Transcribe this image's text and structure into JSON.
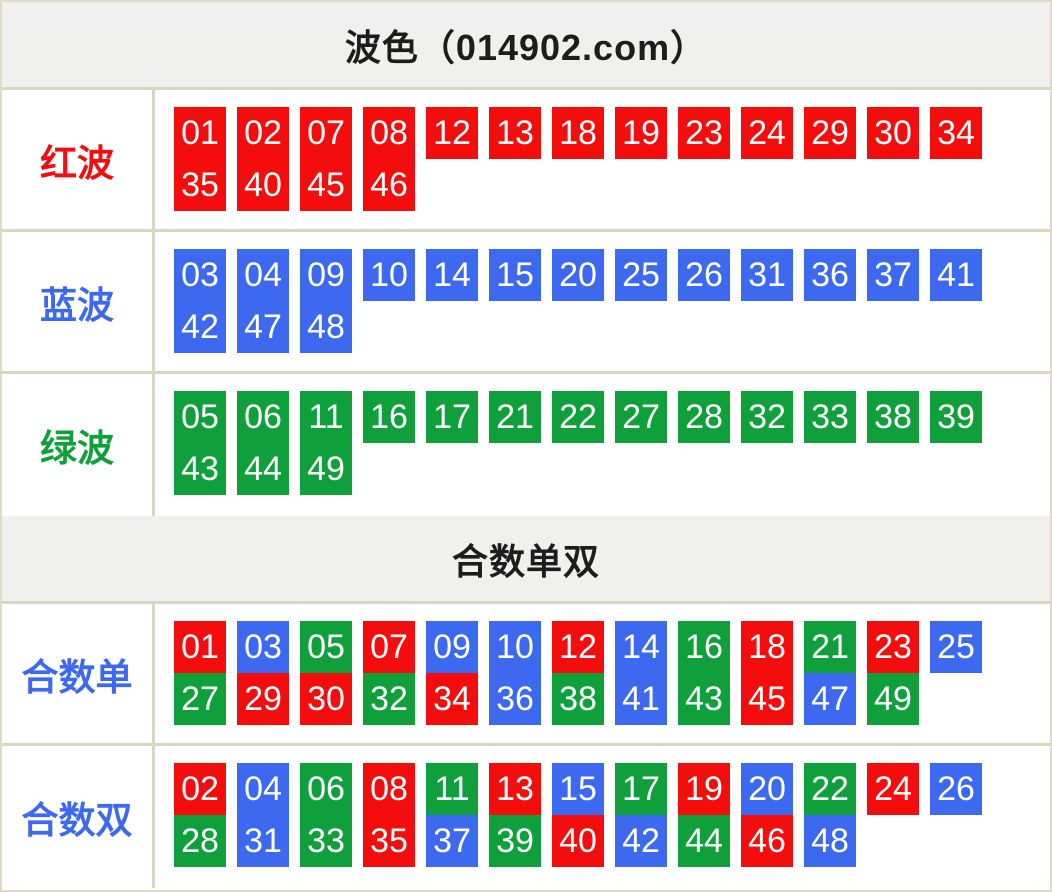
{
  "title": "波色（014902.com）",
  "section_title": "合数单双",
  "colors": {
    "red": "#f30d0d",
    "blue": "#3c69ef",
    "green": "#0fa03c"
  },
  "wave_rows": [
    {
      "id": "red-wave",
      "label": "红波",
      "label_color": "red",
      "line1": [
        {
          "n": "01",
          "c": "red"
        },
        {
          "n": "02",
          "c": "red"
        },
        {
          "n": "07",
          "c": "red"
        },
        {
          "n": "08",
          "c": "red"
        },
        {
          "n": "12",
          "c": "red"
        },
        {
          "n": "13",
          "c": "red"
        },
        {
          "n": "18",
          "c": "red"
        },
        {
          "n": "19",
          "c": "red"
        },
        {
          "n": "23",
          "c": "red"
        },
        {
          "n": "24",
          "c": "red"
        },
        {
          "n": "29",
          "c": "red"
        },
        {
          "n": "30",
          "c": "red"
        },
        {
          "n": "34",
          "c": "red"
        }
      ],
      "line2": [
        {
          "n": "35",
          "c": "red"
        },
        {
          "n": "40",
          "c": "red"
        },
        {
          "n": "45",
          "c": "red"
        },
        {
          "n": "46",
          "c": "red"
        }
      ]
    },
    {
      "id": "blue-wave",
      "label": "蓝波",
      "label_color": "blue",
      "line1": [
        {
          "n": "03",
          "c": "blue"
        },
        {
          "n": "04",
          "c": "blue"
        },
        {
          "n": "09",
          "c": "blue"
        },
        {
          "n": "10",
          "c": "blue"
        },
        {
          "n": "14",
          "c": "blue"
        },
        {
          "n": "15",
          "c": "blue"
        },
        {
          "n": "20",
          "c": "blue"
        },
        {
          "n": "25",
          "c": "blue"
        },
        {
          "n": "26",
          "c": "blue"
        },
        {
          "n": "31",
          "c": "blue"
        },
        {
          "n": "36",
          "c": "blue"
        },
        {
          "n": "37",
          "c": "blue"
        },
        {
          "n": "41",
          "c": "blue"
        }
      ],
      "line2": [
        {
          "n": "42",
          "c": "blue"
        },
        {
          "n": "47",
          "c": "blue"
        },
        {
          "n": "48",
          "c": "blue"
        }
      ]
    },
    {
      "id": "green-wave",
      "label": "绿波",
      "label_color": "green",
      "line1": [
        {
          "n": "05",
          "c": "green"
        },
        {
          "n": "06",
          "c": "green"
        },
        {
          "n": "11",
          "c": "green"
        },
        {
          "n": "16",
          "c": "green"
        },
        {
          "n": "17",
          "c": "green"
        },
        {
          "n": "21",
          "c": "green"
        },
        {
          "n": "22",
          "c": "green"
        },
        {
          "n": "27",
          "c": "green"
        },
        {
          "n": "28",
          "c": "green"
        },
        {
          "n": "32",
          "c": "green"
        },
        {
          "n": "33",
          "c": "green"
        },
        {
          "n": "38",
          "c": "green"
        },
        {
          "n": "39",
          "c": "green"
        }
      ],
      "line2": [
        {
          "n": "43",
          "c": "green"
        },
        {
          "n": "44",
          "c": "green"
        },
        {
          "n": "49",
          "c": "green"
        }
      ]
    }
  ],
  "sum_rows": [
    {
      "id": "sum-odd",
      "label": "合数单",
      "label_color": "blue",
      "line1": [
        {
          "n": "01",
          "c": "red"
        },
        {
          "n": "03",
          "c": "blue"
        },
        {
          "n": "05",
          "c": "green"
        },
        {
          "n": "07",
          "c": "red"
        },
        {
          "n": "09",
          "c": "blue"
        },
        {
          "n": "10",
          "c": "blue"
        },
        {
          "n": "12",
          "c": "red"
        },
        {
          "n": "14",
          "c": "blue"
        },
        {
          "n": "16",
          "c": "green"
        },
        {
          "n": "18",
          "c": "red"
        },
        {
          "n": "21",
          "c": "green"
        },
        {
          "n": "23",
          "c": "red"
        },
        {
          "n": "25",
          "c": "blue"
        }
      ],
      "line2": [
        {
          "n": "27",
          "c": "green"
        },
        {
          "n": "29",
          "c": "red"
        },
        {
          "n": "30",
          "c": "red"
        },
        {
          "n": "32",
          "c": "green"
        },
        {
          "n": "34",
          "c": "red"
        },
        {
          "n": "36",
          "c": "blue"
        },
        {
          "n": "38",
          "c": "green"
        },
        {
          "n": "41",
          "c": "blue"
        },
        {
          "n": "43",
          "c": "green"
        },
        {
          "n": "45",
          "c": "red"
        },
        {
          "n": "47",
          "c": "blue"
        },
        {
          "n": "49",
          "c": "green"
        }
      ]
    },
    {
      "id": "sum-even",
      "label": "合数双",
      "label_color": "blue",
      "line1": [
        {
          "n": "02",
          "c": "red"
        },
        {
          "n": "04",
          "c": "blue"
        },
        {
          "n": "06",
          "c": "green"
        },
        {
          "n": "08",
          "c": "red"
        },
        {
          "n": "11",
          "c": "green"
        },
        {
          "n": "13",
          "c": "red"
        },
        {
          "n": "15",
          "c": "blue"
        },
        {
          "n": "17",
          "c": "green"
        },
        {
          "n": "19",
          "c": "red"
        },
        {
          "n": "20",
          "c": "blue"
        },
        {
          "n": "22",
          "c": "green"
        },
        {
          "n": "24",
          "c": "red"
        },
        {
          "n": "26",
          "c": "blue"
        }
      ],
      "line2": [
        {
          "n": "28",
          "c": "green"
        },
        {
          "n": "31",
          "c": "blue"
        },
        {
          "n": "33",
          "c": "green"
        },
        {
          "n": "35",
          "c": "red"
        },
        {
          "n": "37",
          "c": "blue"
        },
        {
          "n": "39",
          "c": "green"
        },
        {
          "n": "40",
          "c": "red"
        },
        {
          "n": "42",
          "c": "blue"
        },
        {
          "n": "44",
          "c": "green"
        },
        {
          "n": "46",
          "c": "red"
        },
        {
          "n": "48",
          "c": "blue"
        }
      ]
    }
  ]
}
